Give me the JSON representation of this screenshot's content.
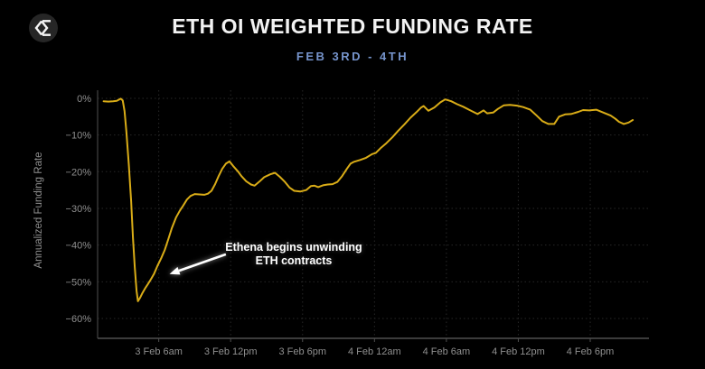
{
  "colors": {
    "background": "#000000",
    "title": "#f2f2f2",
    "subtitle": "#7694cc",
    "line": "#d9ac17",
    "axis": "#4f4f4f",
    "grid": "#272727",
    "tick_label": "#8f8f8f",
    "annotation": "#ffffff",
    "logo_bg": "#262626",
    "logo_glyph": "#f5f5f5"
  },
  "logo": {
    "icon": "sigma-diamond-logo"
  },
  "chart_data": {
    "type": "line",
    "title": "ETH OI WEIGHTED FUNDING RATE",
    "subtitle": "FEB 3RD - 4TH",
    "xlabel": "",
    "ylabel": "Annualized Funding Rate",
    "x_unit": "hours since 3 Feb 12am",
    "xlim": [
      0.9,
      46.9
    ],
    "ylim": [
      -65.4,
      2.2
    ],
    "grid": true,
    "legend": false,
    "x_ticks": [
      {
        "value": 6,
        "label": "3 Feb 6am"
      },
      {
        "value": 12,
        "label": "3 Feb 12pm"
      },
      {
        "value": 18,
        "label": "3 Feb 6pm"
      },
      {
        "value": 24,
        "label": "4 Feb 12am"
      },
      {
        "value": 30,
        "label": "4 Feb 6am"
      },
      {
        "value": 36,
        "label": "4 Feb 12pm"
      },
      {
        "value": 42,
        "label": "4 Feb 6pm"
      }
    ],
    "y_ticks": [
      {
        "value": 0,
        "label": "0%"
      },
      {
        "value": -10,
        "label": "−10%"
      },
      {
        "value": -20,
        "label": "−20%"
      },
      {
        "value": -30,
        "label": "−30%"
      },
      {
        "value": -40,
        "label": "−40%"
      },
      {
        "value": -50,
        "label": "−50%"
      },
      {
        "value": -60,
        "label": "−60%"
      }
    ],
    "series": [
      {
        "name": "ETH OI weighted funding rate (annualized %)",
        "color": "#d9ac17",
        "points": [
          [
            1.4,
            -0.8
          ],
          [
            1.8,
            -0.9
          ],
          [
            2.2,
            -0.8
          ],
          [
            2.5,
            -0.7
          ],
          [
            2.83,
            -0.1
          ],
          [
            3.0,
            -0.6
          ],
          [
            3.15,
            -3.5
          ],
          [
            3.3,
            -9
          ],
          [
            3.5,
            -18
          ],
          [
            3.7,
            -28
          ],
          [
            3.85,
            -38
          ],
          [
            4.0,
            -46
          ],
          [
            4.15,
            -52.5
          ],
          [
            4.26,
            -55.3
          ],
          [
            4.45,
            -54.3
          ],
          [
            4.65,
            -53
          ],
          [
            4.9,
            -51.6
          ],
          [
            5.1,
            -50.6
          ],
          [
            5.35,
            -49.3
          ],
          [
            5.6,
            -47.9
          ],
          [
            5.9,
            -45.6
          ],
          [
            6.2,
            -43.6
          ],
          [
            6.5,
            -41.3
          ],
          [
            6.8,
            -38.4
          ],
          [
            7.1,
            -35.3
          ],
          [
            7.45,
            -32.4
          ],
          [
            7.75,
            -30.7
          ],
          [
            8.05,
            -29.2
          ],
          [
            8.35,
            -27.6
          ],
          [
            8.65,
            -26.6
          ],
          [
            9.0,
            -26.1
          ],
          [
            9.4,
            -26.2
          ],
          [
            9.8,
            -26.3
          ],
          [
            10.1,
            -26.0
          ],
          [
            10.4,
            -25.2
          ],
          [
            10.7,
            -23.4
          ],
          [
            11.0,
            -21.2
          ],
          [
            11.3,
            -19.2
          ],
          [
            11.6,
            -17.8
          ],
          [
            11.9,
            -17.2
          ],
          [
            12.2,
            -18.4
          ],
          [
            12.6,
            -19.9
          ],
          [
            12.9,
            -21.2
          ],
          [
            13.3,
            -22.6
          ],
          [
            13.7,
            -23.5
          ],
          [
            14.0,
            -23.8
          ],
          [
            14.4,
            -22.7
          ],
          [
            14.8,
            -21.5
          ],
          [
            15.3,
            -20.7
          ],
          [
            15.7,
            -20.3
          ],
          [
            16.1,
            -21.4
          ],
          [
            16.5,
            -22.7
          ],
          [
            16.9,
            -24.3
          ],
          [
            17.3,
            -25.2
          ],
          [
            17.8,
            -25.4
          ],
          [
            18.3,
            -25.0
          ],
          [
            18.7,
            -23.9
          ],
          [
            19.0,
            -23.8
          ],
          [
            19.3,
            -24.2
          ],
          [
            19.7,
            -23.7
          ],
          [
            20.1,
            -23.5
          ],
          [
            20.5,
            -23.4
          ],
          [
            20.9,
            -22.8
          ],
          [
            21.3,
            -21.2
          ],
          [
            21.7,
            -19.2
          ],
          [
            22.0,
            -17.8
          ],
          [
            22.3,
            -17.3
          ],
          [
            22.8,
            -16.8
          ],
          [
            23.3,
            -16.2
          ],
          [
            23.8,
            -15.2
          ],
          [
            24.1,
            -14.9
          ],
          [
            24.5,
            -13.6
          ],
          [
            25.0,
            -12.2
          ],
          [
            25.5,
            -10.6
          ],
          [
            26.0,
            -8.8
          ],
          [
            26.5,
            -7.1
          ],
          [
            27.0,
            -5.3
          ],
          [
            27.5,
            -3.8
          ],
          [
            27.9,
            -2.5
          ],
          [
            28.1,
            -2.1
          ],
          [
            28.5,
            -3.4
          ],
          [
            29.0,
            -2.5
          ],
          [
            29.5,
            -1.1
          ],
          [
            29.9,
            -0.3
          ],
          [
            30.4,
            -0.8
          ],
          [
            30.9,
            -1.6
          ],
          [
            31.4,
            -2.3
          ],
          [
            32.0,
            -3.3
          ],
          [
            32.6,
            -4.3
          ],
          [
            33.1,
            -3.3
          ],
          [
            33.4,
            -4.1
          ],
          [
            33.9,
            -3.9
          ],
          [
            34.3,
            -2.9
          ],
          [
            34.8,
            -1.9
          ],
          [
            35.3,
            -1.8
          ],
          [
            35.9,
            -2.0
          ],
          [
            36.4,
            -2.4
          ],
          [
            37.0,
            -3.1
          ],
          [
            37.5,
            -4.6
          ],
          [
            38.0,
            -6.2
          ],
          [
            38.5,
            -7.0
          ],
          [
            39.0,
            -7.0
          ],
          [
            39.4,
            -5.0
          ],
          [
            39.9,
            -4.4
          ],
          [
            40.4,
            -4.3
          ],
          [
            41.0,
            -3.7
          ],
          [
            41.4,
            -3.2
          ],
          [
            41.9,
            -3.3
          ],
          [
            42.5,
            -3.1
          ],
          [
            43.1,
            -3.9
          ],
          [
            43.7,
            -4.7
          ],
          [
            44.1,
            -5.6
          ],
          [
            44.4,
            -6.4
          ],
          [
            44.8,
            -7.0
          ],
          [
            45.2,
            -6.6
          ],
          [
            45.55,
            -5.9
          ]
        ]
      }
    ],
    "annotation": {
      "line1": "Ethena begins unwinding",
      "line2": "ETH contracts",
      "arrow_from": [
        11.6,
        -42.5
      ],
      "arrow_to": [
        6.9,
        -47.9
      ]
    }
  }
}
